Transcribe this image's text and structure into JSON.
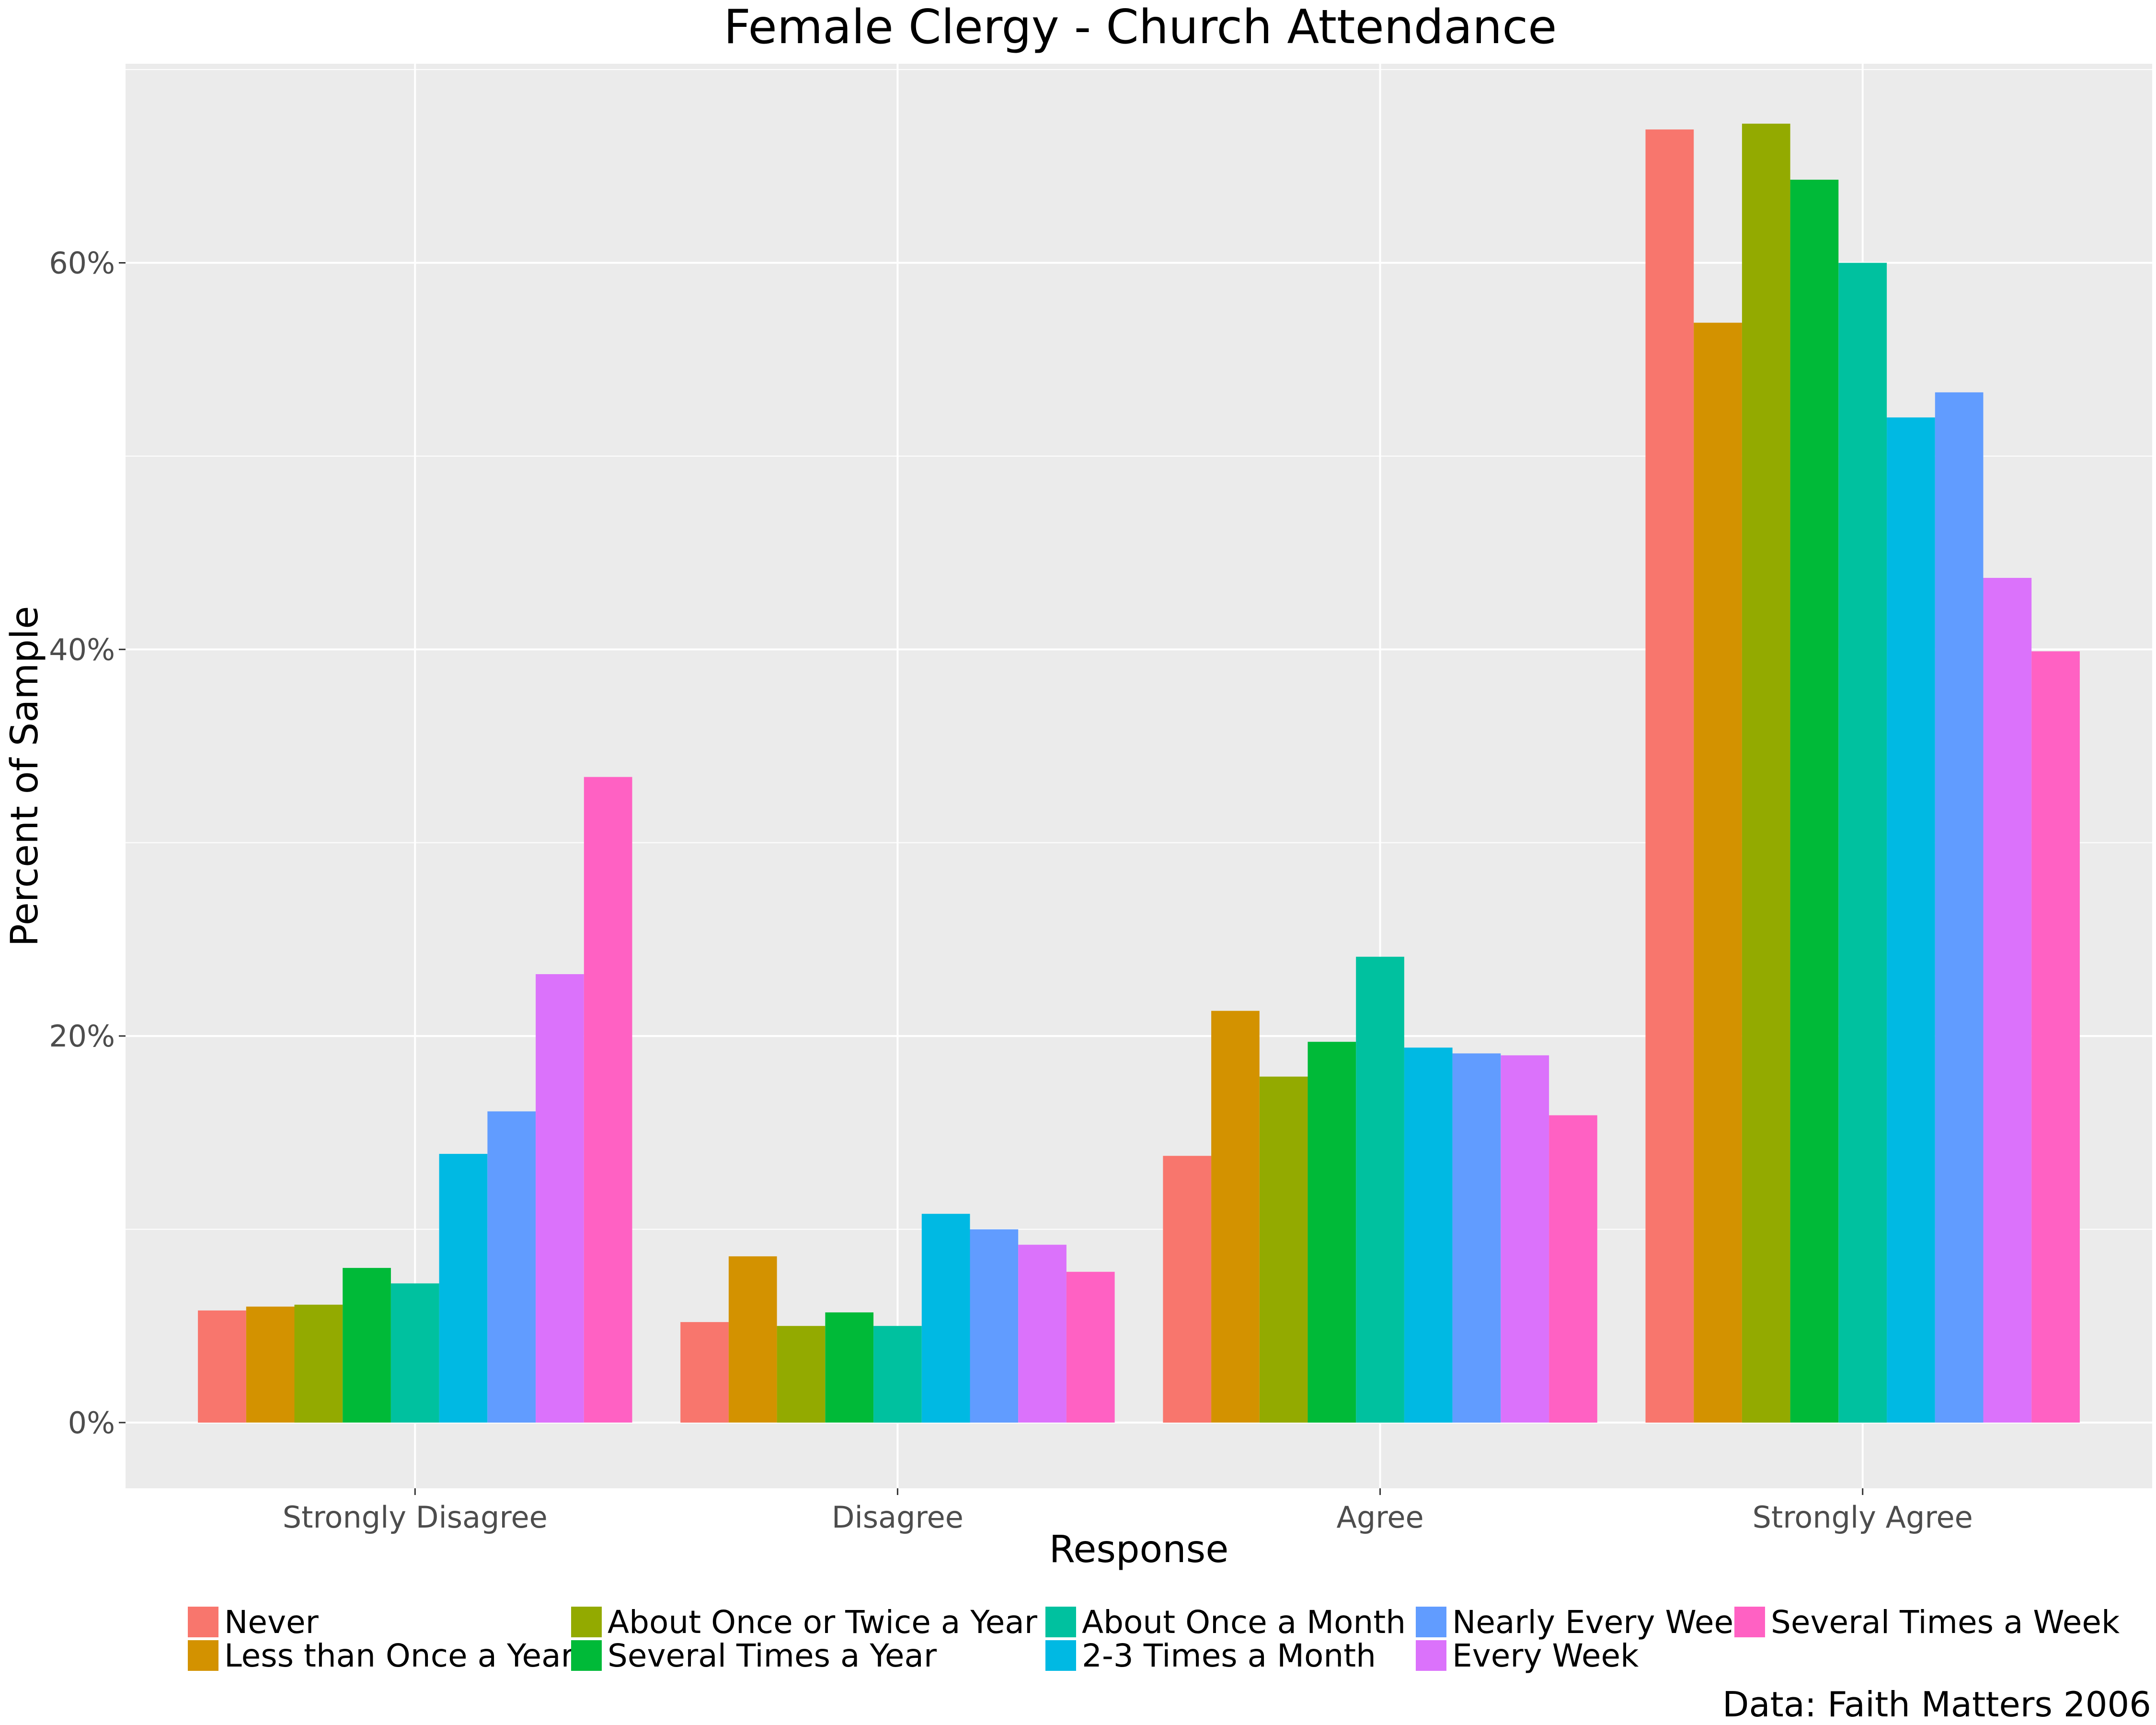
{
  "chart_data": {
    "type": "bar",
    "title": "Female Clergy - Church Attendance",
    "xlabel": "Response",
    "ylabel": "Percent of Sample",
    "caption": "Data: Faith Matters 2006",
    "categories": [
      "Strongly Disagree",
      "Disagree",
      "Agree",
      "Strongly Agree"
    ],
    "ylim": [
      -3.4,
      70.3
    ],
    "yticks": [
      0,
      20,
      40,
      60
    ],
    "ytick_labels": [
      "0%",
      "20%",
      "40%",
      "60%"
    ],
    "grid": true,
    "legend_position": "bottom",
    "series": [
      {
        "name": "Never",
        "color": "#F8766D",
        "values": [
          5.8,
          5.2,
          13.8,
          66.9
        ]
      },
      {
        "name": "Less than Once a Year",
        "color": "#D39200",
        "values": [
          6.0,
          8.6,
          21.3,
          56.9
        ]
      },
      {
        "name": "About Once or Twice a Year",
        "color": "#93AA00",
        "values": [
          6.1,
          5.0,
          17.9,
          67.2
        ]
      },
      {
        "name": "Several Times a Year",
        "color": "#00BA38",
        "values": [
          8.0,
          5.7,
          19.7,
          64.3
        ]
      },
      {
        "name": "About Once a Month",
        "color": "#00C19F",
        "values": [
          7.2,
          5.0,
          24.1,
          60.0
        ]
      },
      {
        "name": "2-3 Times a Month",
        "color": "#00B9E3",
        "values": [
          13.9,
          10.8,
          19.4,
          52.0
        ]
      },
      {
        "name": "Nearly Every Week",
        "color": "#619CFF",
        "values": [
          16.1,
          10.0,
          19.1,
          53.3
        ]
      },
      {
        "name": "Every Week",
        "color": "#DB72FB",
        "values": [
          23.2,
          9.2,
          19.0,
          43.7
        ]
      },
      {
        "name": "Several Times a Week",
        "color": "#FF61C3",
        "values": [
          33.4,
          7.8,
          15.9,
          39.9
        ]
      }
    ]
  }
}
